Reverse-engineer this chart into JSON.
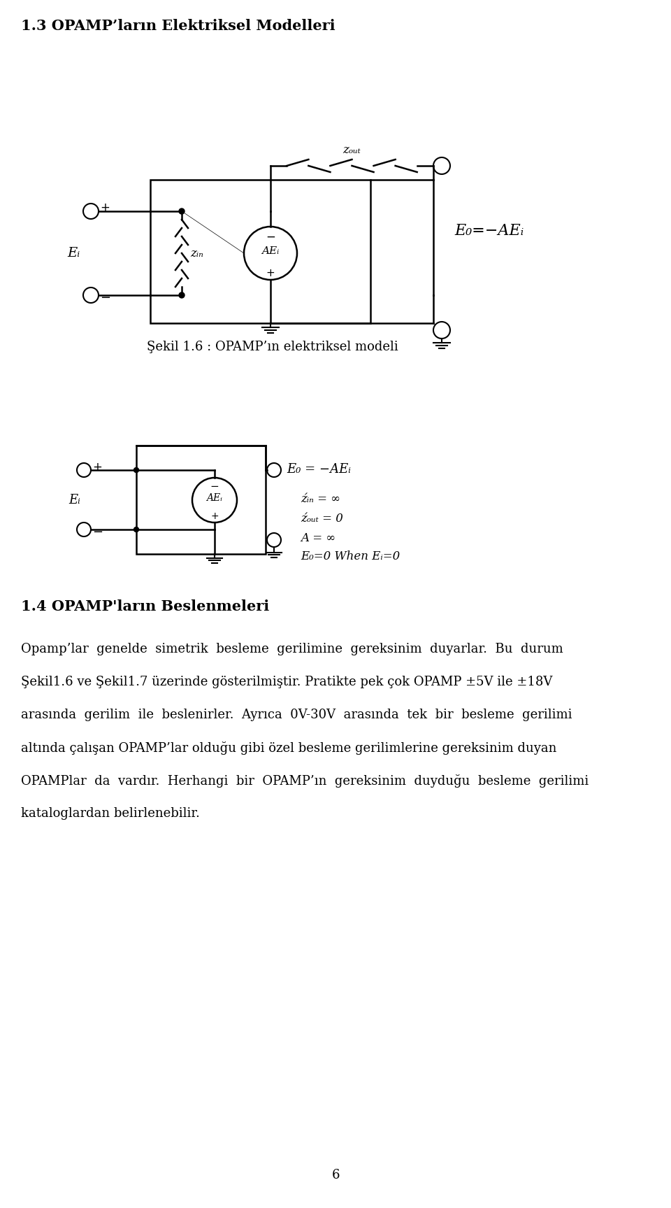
{
  "title_13": "1.3 OPAMP’ların Elektriksel Modelleri",
  "caption_16": "Şekil 1.6 : OPAMP’ın elektriksel modeli",
  "title_14": "1.4 OPAMP'ların Beslenmeleri",
  "body_lines": [
    "Opamp’lar  genelde  simetrik  besleme  gerilimine  gereksinim  duyarlar.  Bu  durum",
    "Şekil1.6 ve Şekil1.7 üzerinde gösterilmiştir. Pratikte pek çok OPAMP ±5V ile ±18V",
    "arasında  gerilim  ile  beslenirler.  Ayrıca  0V-30V  arasında  tek  bir  besleme  gerilimi",
    "altında çalışan OPAMP’lar olduğu gibi özel besleme gerilimlerine gereksinim duyan",
    "OPAMPlar  da  vardır.  Herhangi  bir  OPAMP’ın  gereksinim  duyduğu  besleme  gerilimi",
    "kataloglardan belirlenebilir."
  ],
  "page_number": "6",
  "bg_color": "#ffffff"
}
